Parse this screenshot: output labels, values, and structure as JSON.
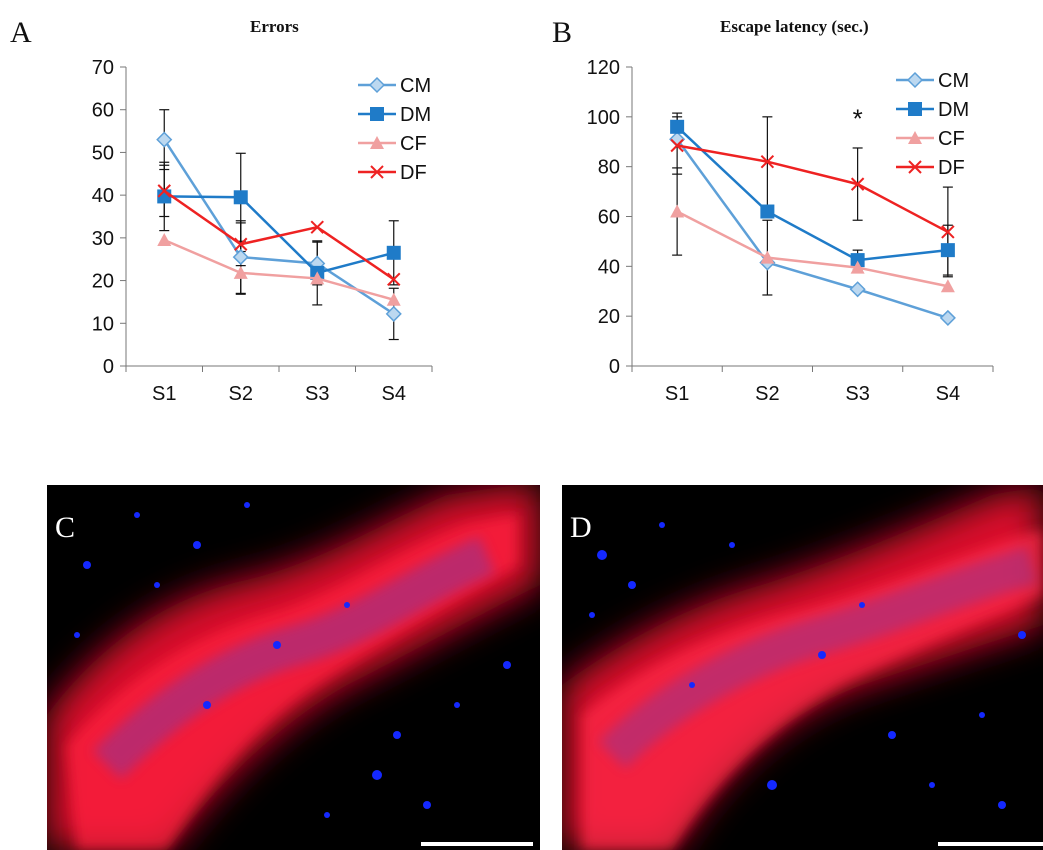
{
  "panels": {
    "a": {
      "letter": "A",
      "title": "Errors"
    },
    "b": {
      "letter": "B",
      "title": "Escape latency (sec.)",
      "annotation": "*"
    },
    "c": {
      "letter": "C"
    },
    "d": {
      "letter": "D"
    }
  },
  "colors": {
    "CM": "#5ea0d8",
    "DM": "#1f7bc8",
    "CF": "#f0a0a0",
    "DF": "#ee2222"
  },
  "chart_data": [
    {
      "type": "line",
      "title": "Errors",
      "categories": [
        "S1",
        "S2",
        "S3",
        "S4"
      ],
      "ylim": [
        0,
        70
      ],
      "yticks": [
        0,
        10,
        20,
        30,
        40,
        50,
        60,
        70
      ],
      "grid": false,
      "legend": "top-right",
      "series": [
        {
          "name": "CM",
          "values": [
            53,
            25.5,
            24,
            12.2
          ],
          "error": [
            7,
            8.5,
            5,
            6
          ],
          "marker": "diamond",
          "color": "#5ea0d8"
        },
        {
          "name": "DM",
          "values": [
            39.7,
            39.5,
            21.8,
            26.5
          ],
          "error": [
            8,
            10.3,
            7.5,
            7.5
          ],
          "marker": "square",
          "color": "#1f7bc8"
        },
        {
          "name": "CF",
          "values": [
            29.5,
            21.8,
            20.5,
            15.5
          ],
          "error": [
            0,
            5,
            0,
            0
          ],
          "marker": "triangle",
          "color": "#f0a0a0"
        },
        {
          "name": "DF",
          "values": [
            41,
            28.5,
            32.5,
            20.3
          ],
          "error": [
            6,
            5,
            0,
            0
          ],
          "marker": "x",
          "color": "#ee2222"
        }
      ]
    },
    {
      "type": "line",
      "title": "Escape latency (sec.)",
      "categories": [
        "S1",
        "S2",
        "S3",
        "S4"
      ],
      "ylim": [
        0,
        120
      ],
      "yticks": [
        0,
        20,
        40,
        60,
        80,
        100,
        120
      ],
      "grid": false,
      "legend": "top-right",
      "annotations": [
        {
          "text": "*",
          "category": "S3",
          "y": 99
        }
      ],
      "series": [
        {
          "name": "CM",
          "values": [
            91,
            41.5,
            30.8,
            19.3
          ],
          "error": [
            0,
            0,
            0,
            0
          ],
          "marker": "diamond",
          "color": "#5ea0d8"
        },
        {
          "name": "DM",
          "values": [
            96,
            62,
            42.5,
            46.5
          ],
          "error": [
            5.5,
            0,
            4,
            10
          ],
          "marker": "square",
          "color": "#1f7bc8"
        },
        {
          "name": "CF",
          "values": [
            62,
            43.5,
            39.5,
            32
          ],
          "error": [
            17.5,
            15,
            0,
            0
          ],
          "marker": "triangle",
          "color": "#f0a0a0"
        },
        {
          "name": "DF",
          "values": [
            88.5,
            82,
            73,
            53.8
          ],
          "error": [
            11.5,
            18,
            14.5,
            18
          ],
          "marker": "x",
          "color": "#ee2222"
        }
      ]
    }
  ]
}
